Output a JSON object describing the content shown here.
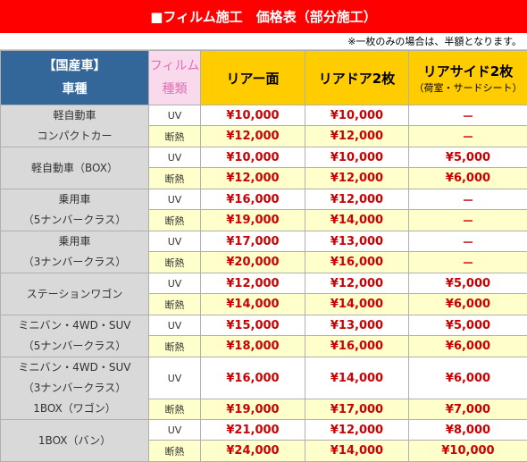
{
  "title": "■フィルム施工　価格表（部分施工）",
  "note": "※一枚のみの場合は、半額となります。",
  "header": {
    "corner_line1": "【国産車】",
    "corner_line2": "車種",
    "film_line1": "フィルム",
    "film_line2": "種類",
    "col1": "リアー面",
    "col2": "リアドア2枚",
    "col3": "リアサイド2枚",
    "col3_sub": "（荷室・サードシート）"
  },
  "film_types": {
    "uv": "UV",
    "dan": "断熱"
  },
  "rows": [
    {
      "car": [
        "軽自動車",
        "コンパクトカー"
      ],
      "uv": [
        "¥10,000",
        "¥10,000",
        "－"
      ],
      "dan": [
        "¥12,000",
        "¥12,000",
        "－"
      ]
    },
    {
      "car": [
        "軽自動車（BOX）"
      ],
      "uv": [
        "¥10,000",
        "¥10,000",
        "¥5,000"
      ],
      "dan": [
        "¥12,000",
        "¥12,000",
        "¥6,000"
      ]
    },
    {
      "car": [
        "乗用車",
        "（5ナンバークラス）"
      ],
      "uv": [
        "¥16,000",
        "¥12,000",
        "－"
      ],
      "dan": [
        "¥19,000",
        "¥14,000",
        "－"
      ]
    },
    {
      "car": [
        "乗用車",
        "（3ナンバークラス）"
      ],
      "uv": [
        "¥17,000",
        "¥13,000",
        "－"
      ],
      "dan": [
        "¥20,000",
        "¥16,000",
        "－"
      ]
    },
    {
      "car": [
        "ステーションワゴン"
      ],
      "uv": [
        "¥12,000",
        "¥12,000",
        "¥5,000"
      ],
      "dan": [
        "¥14,000",
        "¥14,000",
        "¥6,000"
      ]
    },
    {
      "car": [
        "ミニバン・4WD・SUV",
        "（5ナンバークラス）"
      ],
      "uv": [
        "¥15,000",
        "¥13,000",
        "¥5,000"
      ],
      "dan": [
        "¥18,000",
        "¥16,000",
        "¥6,000"
      ]
    },
    {
      "car": [
        "ミニバン・4WD・SUV",
        "（3ナンバークラス）",
        "1BOX（ワゴン）"
      ],
      "uv": [
        "¥16,000",
        "¥14,000",
        "¥6,000"
      ],
      "dan": [
        "¥19,000",
        "¥17,000",
        "¥7,000"
      ]
    },
    {
      "car": [
        "1BOX（バン）"
      ],
      "uv": [
        "¥21,000",
        "¥12,000",
        "¥8,000"
      ],
      "dan": [
        "¥24,000",
        "¥14,000",
        "¥10,000"
      ]
    }
  ]
}
